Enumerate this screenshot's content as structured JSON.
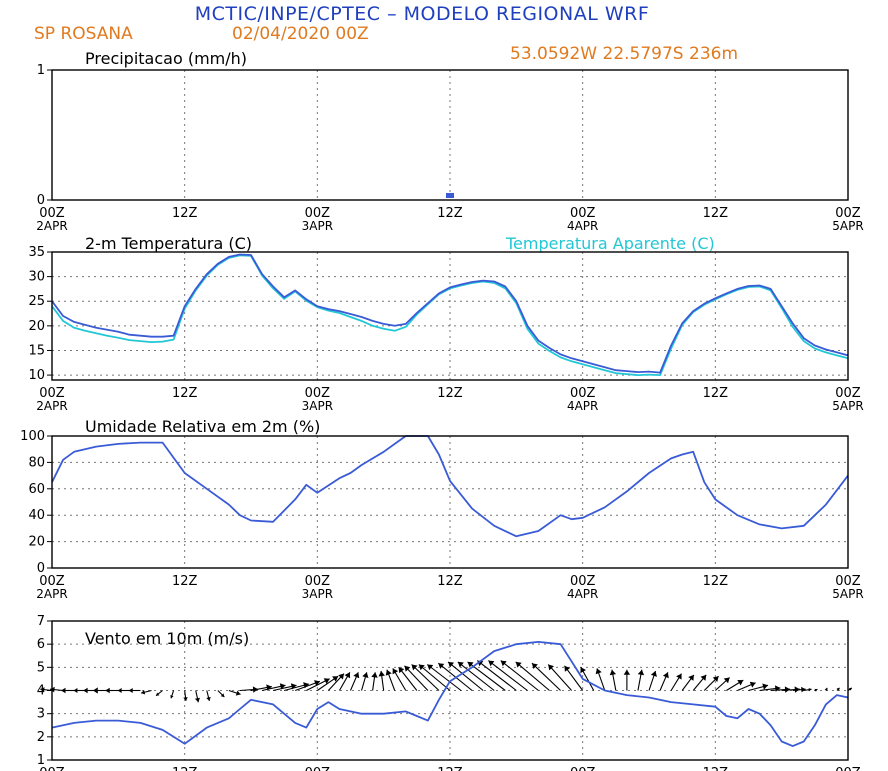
{
  "header": {
    "title": "MCTIC/INPE/CPTEC – MODELO REGIONAL WRF",
    "station": "SP ROSANA",
    "run": "02/04/2020 00Z",
    "location": "53.0592W 22.5797S 236m"
  },
  "colors": {
    "title": "#1f3fbf",
    "orange": "#e07a1f",
    "line": "#3a5bd6",
    "apparent": "#22c7d6",
    "arrow": "#000000"
  },
  "time_axis": {
    "ticks": [
      "00Z",
      "12Z",
      "00Z",
      "12Z",
      "00Z",
      "12Z",
      "00Z"
    ],
    "dates": [
      "2APR",
      "",
      "3APR",
      "",
      "4APR",
      "",
      "5APR"
    ],
    "hours": [
      0,
      12,
      24,
      36,
      48,
      60,
      72
    ]
  },
  "chart_data": [
    {
      "type": "bar",
      "title": "Precipitacao (mm/h)",
      "yticks": [
        0,
        1
      ],
      "ylim": [
        0,
        1
      ],
      "xlim": [
        0,
        72
      ],
      "series": [
        {
          "x": [
            36
          ],
          "values": [
            0.02
          ]
        }
      ]
    },
    {
      "type": "line",
      "title": "2-m Temperatura (C)",
      "legend": "Temperatura Aparente (C)",
      "yticks": [
        10,
        15,
        20,
        25,
        30,
        35
      ],
      "ylim": [
        9,
        35
      ],
      "xlim": [
        0,
        72
      ],
      "x": [
        0,
        1,
        2,
        3,
        4,
        5,
        6,
        7,
        8,
        9,
        10,
        11,
        12,
        13,
        14,
        15,
        16,
        17,
        18,
        19,
        20,
        21,
        22,
        23,
        24,
        25,
        26,
        27,
        28,
        29,
        30,
        31,
        32,
        33,
        34,
        35,
        36,
        37,
        38,
        39,
        40,
        41,
        42,
        43,
        44,
        45,
        46,
        47,
        48,
        49,
        50,
        51,
        52,
        53,
        54,
        55,
        56,
        57,
        58,
        59,
        60,
        61,
        62,
        63,
        64,
        65,
        66,
        67,
        68,
        69,
        70,
        71,
        72
      ],
      "series": [
        {
          "values": [
            25,
            22,
            20.8,
            20.2,
            19.6,
            19.2,
            18.8,
            18.2,
            18,
            17.8,
            17.8,
            18,
            24,
            27.5,
            30.5,
            32.6,
            34,
            34.5,
            34.4,
            30.5,
            28,
            25.8,
            27.2,
            25.4,
            24,
            23.4,
            23,
            22.4,
            21.8,
            21,
            20.4,
            20,
            20.4,
            22.6,
            24.6,
            26.6,
            27.8,
            28.4,
            28.9,
            29.2,
            29,
            28,
            25,
            20,
            17,
            15.5,
            14.2,
            13.4,
            12.8,
            12.2,
            11.6,
            11,
            10.8,
            10.6,
            10.7,
            10.5,
            16,
            20.5,
            23,
            24.5,
            25.6,
            26.6,
            27.5,
            28.1,
            28.2,
            27.5,
            24,
            20.5,
            17.5,
            16,
            15.2,
            14.6,
            14
          ]
        },
        {
          "values": [
            24,
            21,
            19.6,
            19,
            18.5,
            18,
            17.6,
            17.1,
            16.9,
            16.7,
            16.8,
            17.2,
            23.5,
            27.2,
            30.2,
            32.4,
            33.8,
            34.3,
            34.2,
            30.2,
            27.6,
            25.5,
            27,
            25.1,
            23.8,
            23.1,
            22.6,
            21.8,
            21,
            20,
            19.4,
            19,
            19.8,
            22.3,
            24.4,
            26.4,
            27.6,
            28.2,
            28.7,
            29,
            28.7,
            27.6,
            24.6,
            19.4,
            16.4,
            14.9,
            13.6,
            12.8,
            12.2,
            11.6,
            11,
            10.4,
            10.2,
            10,
            10.1,
            10,
            15.4,
            20.2,
            22.8,
            24.3,
            25.4,
            26.4,
            27.3,
            27.9,
            28,
            27.2,
            23.6,
            19.8,
            16.9,
            15.4,
            14.6,
            14,
            13.4
          ]
        }
      ]
    },
    {
      "type": "line",
      "title": "Umidade Relativa em 2m (%)",
      "yticks": [
        0,
        20,
        40,
        60,
        80,
        100
      ],
      "ylim": [
        0,
        100
      ],
      "xlim": [
        0,
        72
      ],
      "x": [
        0,
        1,
        2,
        4,
        6,
        8,
        10,
        12,
        14,
        16,
        17,
        18,
        20,
        22,
        23,
        24,
        26,
        27,
        28,
        30,
        31,
        32,
        33,
        34,
        35,
        36,
        38,
        40,
        42,
        44,
        46,
        47,
        48,
        50,
        52,
        54,
        56,
        57,
        58,
        59,
        60,
        62,
        64,
        66,
        68,
        70,
        72
      ],
      "series": [
        {
          "values": [
            65,
            82,
            88,
            92,
            94,
            95,
            95,
            72,
            60,
            48,
            40,
            36,
            35,
            52,
            63,
            57,
            68,
            72,
            78,
            88,
            94,
            100,
            100,
            100,
            86,
            66,
            45,
            32,
            24,
            28,
            40,
            37,
            38,
            46,
            58,
            72,
            83,
            86,
            88,
            65,
            52,
            40,
            33,
            30,
            32,
            48,
            70
          ]
        }
      ]
    },
    {
      "type": "line",
      "title": "Vento em 10m (m/s)",
      "yticks": [
        1,
        2,
        3,
        4,
        5,
        6,
        7
      ],
      "ylim": [
        1,
        7
      ],
      "xlim": [
        0,
        72
      ],
      "x": [
        0,
        1,
        2,
        4,
        6,
        8,
        10,
        11,
        12,
        14,
        16,
        17,
        18,
        20,
        22,
        23,
        24,
        25,
        26,
        28,
        30,
        32,
        33,
        34,
        35,
        36,
        38,
        40,
        42,
        44,
        46,
        48,
        50,
        52,
        54,
        56,
        58,
        60,
        61,
        62,
        63,
        64,
        65,
        66,
        67,
        68,
        69,
        70,
        71,
        72
      ],
      "series": [
        {
          "values": [
            2.4,
            2.5,
            2.6,
            2.7,
            2.7,
            2.6,
            2.3,
            2.0,
            1.7,
            2.4,
            2.8,
            3.2,
            3.6,
            3.4,
            2.6,
            2.4,
            3.2,
            3.5,
            3.2,
            3.0,
            3.0,
            3.1,
            2.9,
            2.7,
            3.6,
            4.4,
            5.0,
            5.7,
            6.0,
            6.1,
            6.0,
            4.5,
            4.0,
            3.8,
            3.7,
            3.5,
            3.4,
            3.3,
            2.9,
            2.8,
            3.2,
            3.0,
            2.5,
            1.8,
            1.6,
            1.8,
            2.5,
            3.4,
            3.8,
            3.7
          ]
        }
      ],
      "vectors": {
        "x": [
          0,
          1,
          2,
          3,
          4,
          5,
          6,
          7,
          8,
          9,
          10,
          11,
          12,
          13,
          14,
          15,
          16,
          17,
          18,
          19,
          20,
          21,
          22,
          23,
          24,
          25,
          26,
          27,
          28,
          29,
          30,
          31,
          32,
          33,
          34,
          35,
          36,
          37,
          38,
          39,
          40,
          41,
          42,
          43,
          44,
          45,
          46,
          47,
          48,
          49,
          50,
          51,
          52,
          53,
          54,
          55,
          56,
          57,
          58,
          59,
          60,
          61,
          62,
          63,
          64,
          65,
          66,
          67,
          68,
          69,
          70,
          71,
          72
        ],
        "u": [
          -0.9,
          -1.0,
          -1.0,
          -0.9,
          -1.0,
          -1.1,
          -1.0,
          -0.9,
          -0.9,
          -0.8,
          -0.5,
          -0.2,
          0.1,
          0.2,
          0.2,
          0.5,
          0.9,
          1.4,
          1.6,
          1.8,
          1.8,
          1.9,
          1.9,
          1.8,
          1.6,
          1.2,
          0.8,
          0.6,
          0.4,
          0.2,
          -0.2,
          -0.6,
          -1.0,
          -1.4,
          -1.8,
          -2.1,
          -2.4,
          -2.6,
          -2.6,
          -2.7,
          -2.8,
          -2.9,
          -3.0,
          -3.0,
          -2.9,
          -2.6,
          -2.2,
          -1.8,
          -1.4,
          -1.0,
          -0.6,
          -0.3,
          0.0,
          0.3,
          0.5,
          0.6,
          0.8,
          0.9,
          1.0,
          1.1,
          1.1,
          1.3,
          1.4,
          1.5,
          1.6,
          1.5,
          1.4,
          1.0,
          0.6,
          0.2,
          0.1,
          0.2,
          0.3
        ],
        "v": [
          0.1,
          0.1,
          0.0,
          0.0,
          0.0,
          0.0,
          0.0,
          0.0,
          0.0,
          -0.2,
          -0.4,
          -0.6,
          -0.8,
          -0.9,
          -0.8,
          -0.5,
          -0.3,
          0.1,
          0.3,
          0.4,
          0.4,
          0.5,
          0.7,
          0.9,
          1.1,
          1.3,
          1.4,
          1.4,
          1.4,
          1.4,
          1.5,
          1.6,
          1.7,
          1.8,
          1.9,
          2.0,
          2.0,
          2.0,
          2.1,
          2.2,
          2.2,
          2.2,
          2.3,
          2.3,
          2.3,
          2.2,
          2.1,
          2.0,
          1.9,
          1.8,
          1.7,
          1.6,
          1.6,
          1.6,
          1.5,
          1.4,
          1.3,
          1.2,
          1.2,
          1.1,
          1.0,
          0.8,
          0.6,
          0.4,
          0.2,
          0.1,
          0.1,
          0.1,
          0.1,
          0.1,
          0.2,
          0.2,
          0.2
        ]
      }
    }
  ]
}
